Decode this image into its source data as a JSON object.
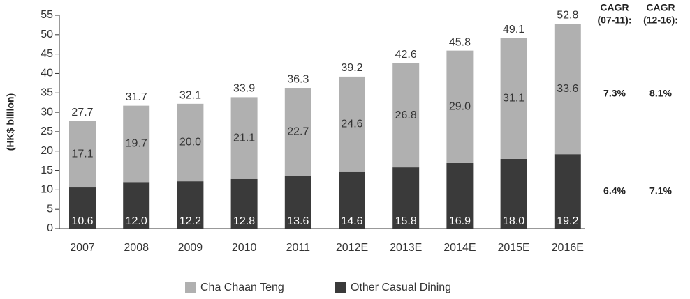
{
  "chart_data": {
    "type": "stacked_bar",
    "categories": [
      "2007",
      "2008",
      "2009",
      "2010",
      "2011",
      "2012E",
      "2013E",
      "2014E",
      "2015E",
      "2016E"
    ],
    "series": [
      {
        "name": "Other Casual Dining",
        "color": "#3a3a3a",
        "values": [
          10.6,
          12.0,
          12.2,
          12.8,
          13.6,
          14.6,
          15.8,
          16.9,
          18.0,
          19.2
        ],
        "value_labels": [
          "10.6",
          "12.0",
          "12.2",
          "12.8",
          "13.6",
          "14.6",
          "15.8",
          "16.9",
          "18.0",
          "19.2"
        ]
      },
      {
        "name": "Cha Chaan Teng",
        "color": "#b0b0b0",
        "values": [
          17.1,
          19.7,
          20.0,
          21.1,
          22.7,
          24.6,
          26.8,
          29.0,
          31.1,
          33.6
        ],
        "value_labels": [
          "17.1",
          "19.7",
          "20.0",
          "21.1",
          "22.7",
          "24.6",
          "26.8",
          "29.0",
          "31.1",
          "33.6"
        ]
      }
    ],
    "totals": [
      27.7,
      31.7,
      32.1,
      33.9,
      36.3,
      39.2,
      42.6,
      45.8,
      49.1,
      52.8
    ],
    "ylabel": "(HK$ billion)",
    "ylim": [
      0,
      55
    ],
    "yticks": [
      0,
      5,
      10,
      15,
      20,
      25,
      30,
      35,
      40,
      45,
      50,
      55
    ],
    "legend_order": [
      "Cha Chaan Teng",
      "Other Casual Dining"
    ],
    "cagr_headers": [
      [
        "CAGR",
        "(07-11):"
      ],
      [
        "CAGR",
        "(12-16):"
      ]
    ],
    "cagr": {
      "Cha Chaan Teng": [
        "7.3%",
        "8.1%"
      ],
      "Other Casual Dining": [
        "6.4%",
        "7.1%"
      ]
    }
  }
}
